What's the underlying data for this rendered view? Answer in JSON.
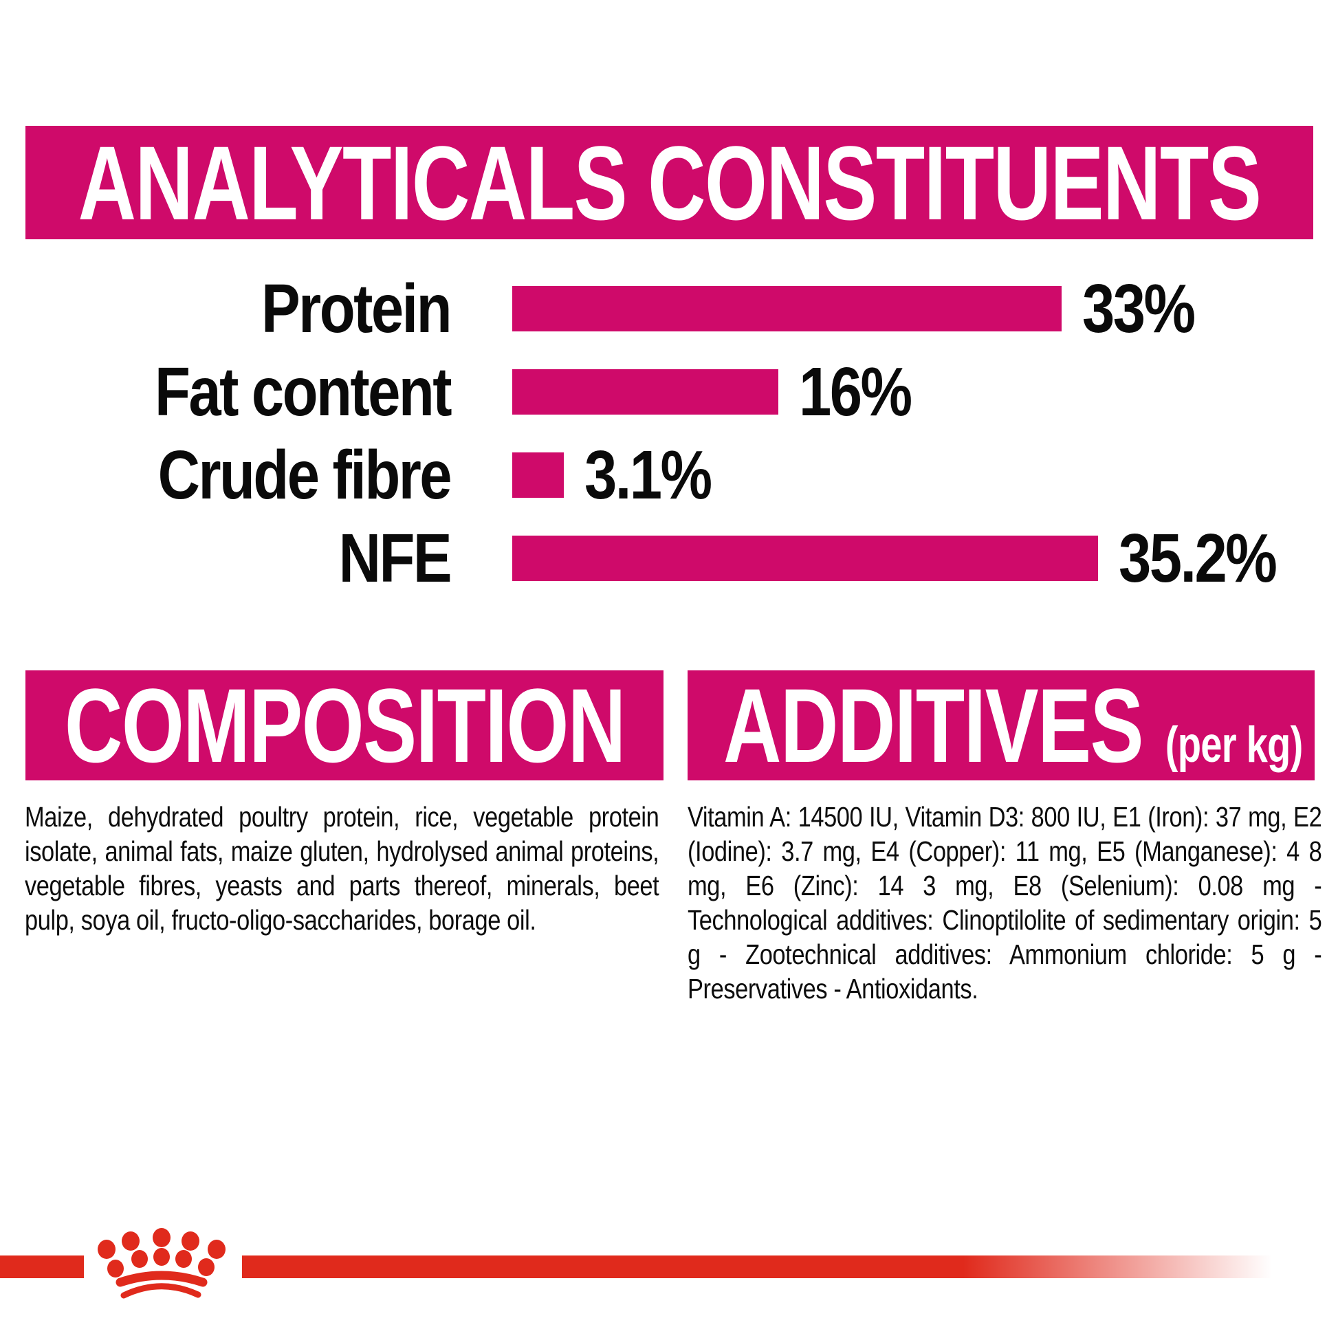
{
  "page": {
    "background": "#ffffff"
  },
  "colors": {
    "magenta": "#CF0A6A",
    "red": "#E02A1C",
    "text": "#0a0a0a",
    "banner_text": "#ffffff"
  },
  "header": {
    "title": "ANALYTICALS CONSTITUENTS"
  },
  "chart_data": {
    "type": "bar",
    "orientation": "horizontal",
    "title": "ANALYTICALS CONSTITUENTS",
    "categories": [
      "Protein",
      "Fat content",
      "Crude fibre",
      "NFE"
    ],
    "values": [
      33,
      16,
      3.1,
      35.2
    ],
    "value_labels": [
      "33%",
      "16%",
      "3.1%",
      "35.2%"
    ],
    "unit": "%",
    "bar_color": "#CF0A6A",
    "label_color": "#0a0a0a",
    "xlim": [
      0,
      40
    ],
    "grid": false,
    "legend": false
  },
  "composition": {
    "title": "COMPOSITION",
    "body": "Maize, dehydrated poultry protein, rice, vegetable protein isolate,  animal fats, maize gluten, hydrolysed animal proteins, vegetable fibres, yeasts and parts thereof, minerals, beet pulp, soya oil, fructo-oligo-saccharides, borage oil."
  },
  "additives": {
    "title": "ADDITIVES",
    "unit_suffix": "(per kg)",
    "body": "Vitamin A: 14500 IU, Vitamin D3: 800 IU, E1 (Iron): 37 mg, E2 (Iodine): 3.7 mg, E4 (Copper): 11 mg, E5 (Manganese): 4 8 mg, E6 (Zinc): 14 3 mg, E8 (Selenium): 0.08 mg -Technological additives: Clinoptilolite of sedimentary origin: 5 g - Zootechnical additives: Ammonium chloride: 5 g - Preservatives - Antioxidants."
  },
  "footer": {
    "logo": "royal-canin-crown",
    "logo_color": "#E02A1C"
  }
}
